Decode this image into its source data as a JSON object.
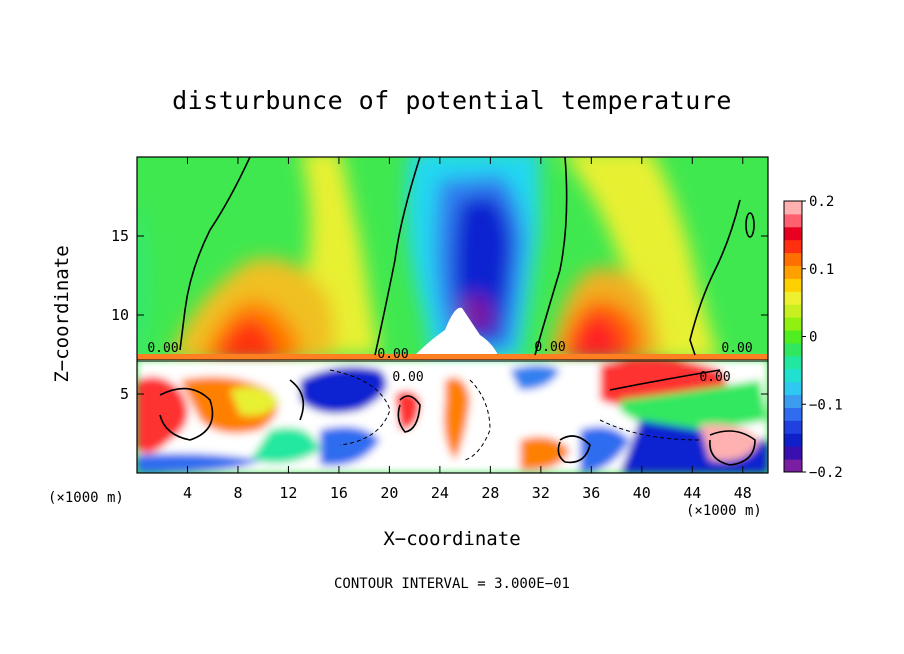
{
  "chart_data": {
    "type": "heatmap",
    "title": "disturbunce of potential temperature",
    "xlabel": "X−coordinate",
    "ylabel": "Z−coordinate",
    "x_unit": "(×1000 m)",
    "x_ticks": [
      4,
      8,
      12,
      16,
      20,
      24,
      28,
      32,
      36,
      40,
      44,
      48
    ],
    "y_ticks": [
      5,
      10,
      15
    ],
    "xlim": [
      0,
      50
    ],
    "ylim": [
      0,
      20
    ],
    "colorbar": {
      "range": [
        -0.2,
        0.2
      ],
      "ticks": [
        "0.2",
        "0.1",
        "0",
        "−0.1",
        "−0.2"
      ],
      "colors": [
        "#7a1fa2",
        "#3a0fb0",
        "#1020c8",
        "#2040e0",
        "#2f6cf0",
        "#3c9cf0",
        "#2ec8f0",
        "#20e0d0",
        "#20e8a0",
        "#30e860",
        "#50ee20",
        "#90f010",
        "#c8f020",
        "#eef030",
        "#ffd000",
        "#ffa000",
        "#ff7000",
        "#ff3010",
        "#e80020",
        "#ff6070",
        "#ffb0b0"
      ]
    },
    "contour_labels": [
      "0.00",
      "0.00",
      "0.00",
      "0.00",
      "0.00",
      "0.00"
    ],
    "contour_interval": "CONTOUR INTERVAL = 3.000E−01"
  }
}
